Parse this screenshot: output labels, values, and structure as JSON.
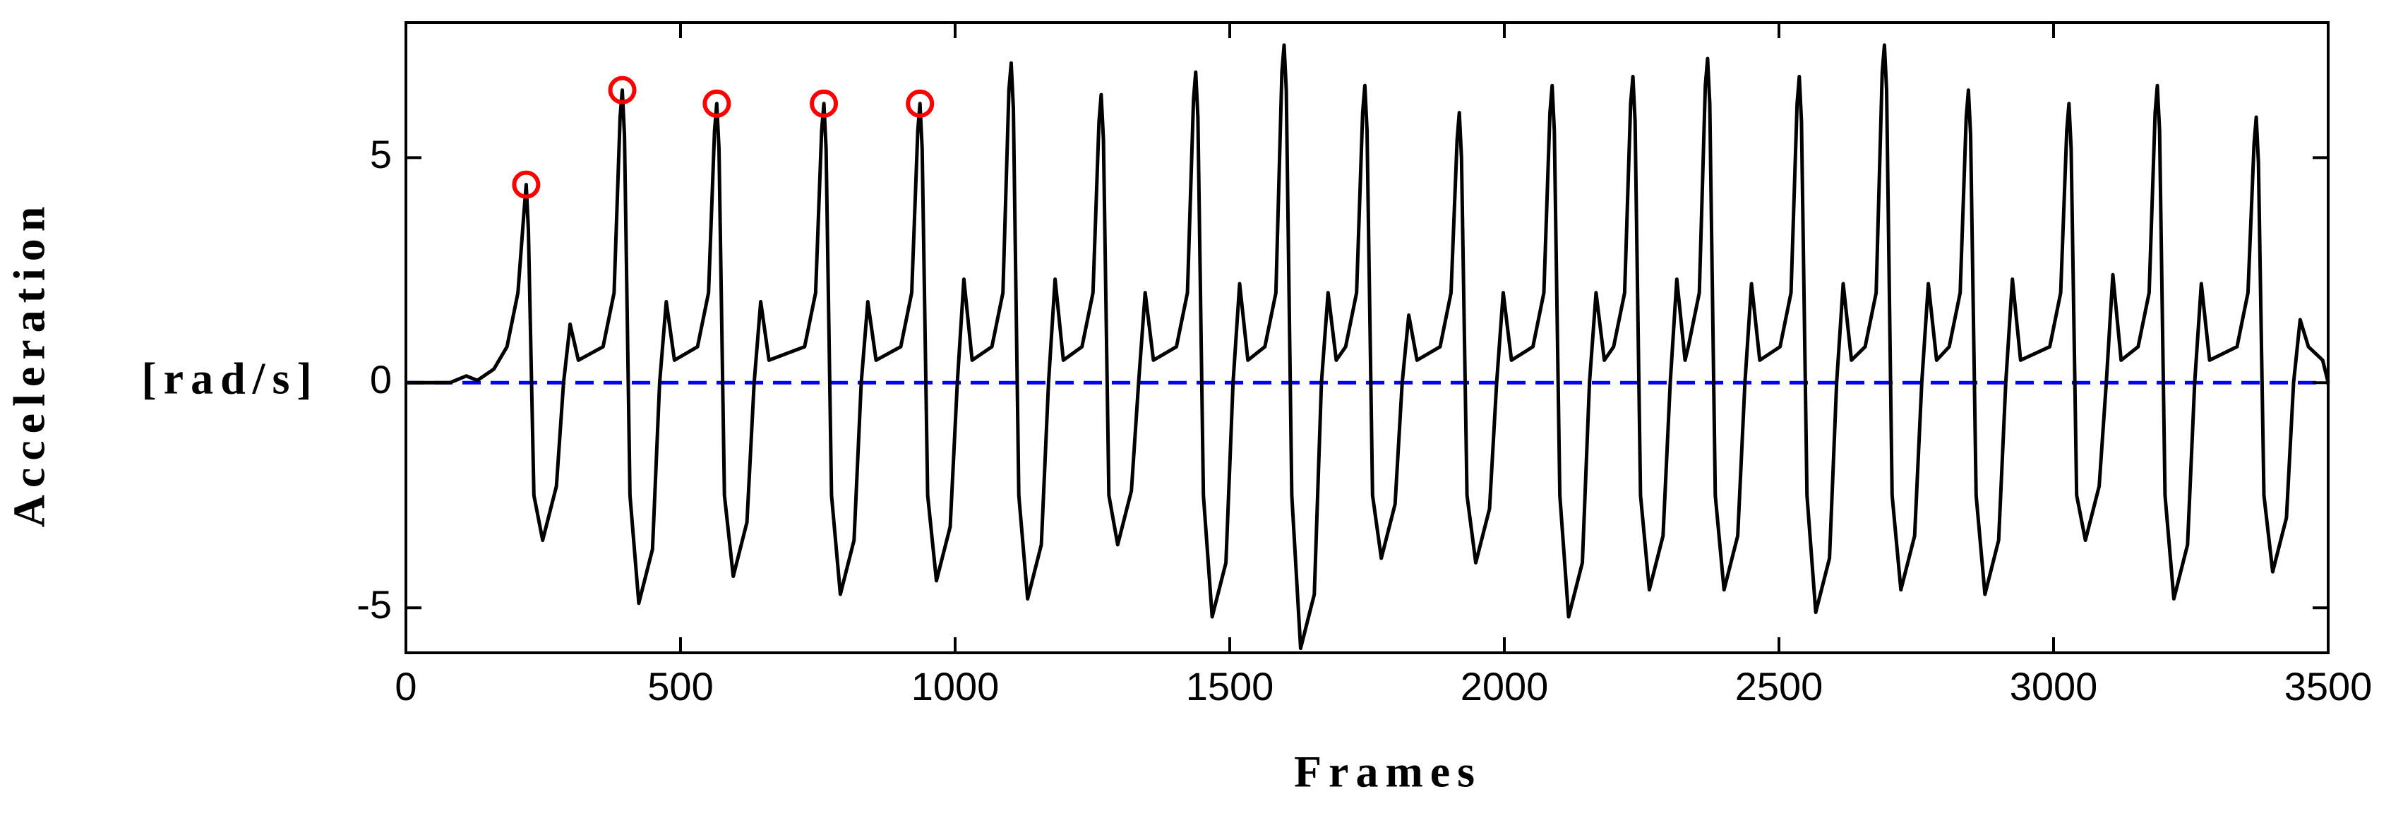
{
  "chart_data": {
    "type": "line",
    "xlabel": "Frames",
    "ylabel": "Acceleration",
    "ylabel_unit": "[rad/s]",
    "xlim": [
      0,
      3500
    ],
    "ylim": [
      -6,
      8
    ],
    "xticks": [
      0,
      500,
      1000,
      1500,
      2000,
      2500,
      3000,
      3500
    ],
    "yticks": [
      -5,
      0,
      5
    ],
    "grid": false,
    "hline": {
      "value": 0,
      "color": "#0000ff",
      "dashed": true
    },
    "series": [
      {
        "type": "line",
        "color": "#000000",
        "x": [
          0,
          80,
          110,
          130,
          160,
          184,
          204,
          215,
          219,
          223,
          233,
          249,
          274,
          287,
          299,
          314,
          359,
          379,
          390,
          394,
          398,
          408,
          424,
          449,
          462,
          474,
          489,
          531,
          551,
          562,
          566,
          570,
          580,
          596,
          621,
          634,
          646,
          661,
          726,
          746,
          757,
          761,
          765,
          775,
          791,
          816,
          829,
          841,
          856,
          901,
          921,
          932,
          936,
          940,
          950,
          966,
          991,
          1004,
          1016,
          1031,
          1067,
          1087,
          1098,
          1102,
          1106,
          1116,
          1132,
          1157,
          1170,
          1182,
          1197,
          1231,
          1251,
          1262,
          1266,
          1270,
          1280,
          1296,
          1321,
          1334,
          1346,
          1361,
          1403,
          1423,
          1434,
          1438,
          1442,
          1452,
          1468,
          1493,
          1506,
          1518,
          1533,
          1564,
          1584,
          1595,
          1599,
          1603,
          1613,
          1629,
          1654,
          1667,
          1679,
          1694,
          1711,
          1731,
          1742,
          1746,
          1750,
          1760,
          1776,
          1801,
          1814,
          1826,
          1841,
          1883,
          1903,
          1914,
          1918,
          1922,
          1932,
          1948,
          1973,
          1986,
          1998,
          2013,
          2052,
          2072,
          2083,
          2087,
          2091,
          2101,
          2117,
          2142,
          2155,
          2167,
          2182,
          2199,
          2219,
          2230,
          2234,
          2238,
          2248,
          2264,
          2289,
          2302,
          2314,
          2329,
          2335,
          2355,
          2366,
          2370,
          2374,
          2384,
          2400,
          2425,
          2438,
          2450,
          2465,
          2502,
          2522,
          2533,
          2537,
          2541,
          2551,
          2567,
          2592,
          2605,
          2617,
          2632,
          2657,
          2677,
          2688,
          2692,
          2696,
          2706,
          2722,
          2747,
          2760,
          2772,
          2787,
          2810,
          2830,
          2841,
          2845,
          2849,
          2859,
          2875,
          2900,
          2913,
          2925,
          2940,
          2993,
          3013,
          3024,
          3028,
          3032,
          3042,
          3058,
          3083,
          3096,
          3108,
          3123,
          3154,
          3174,
          3185,
          3189,
          3193,
          3203,
          3219,
          3244,
          3257,
          3269,
          3284,
          3334,
          3354,
          3365,
          3369,
          3373,
          3383,
          3399,
          3424,
          3437,
          3449,
          3464,
          3490,
          3500
        ],
        "values": [
          0,
          0,
          0.15,
          0.05,
          0.3,
          0.8,
          2,
          3.8,
          4.4,
          3.4,
          -2.5,
          -3.5,
          -2.3,
          0,
          1.3,
          0.5,
          0.8,
          2,
          5.9,
          6.5,
          5.5,
          -2.5,
          -4.9,
          -3.7,
          0,
          1.8,
          0.5,
          0.8,
          2,
          5.6,
          6.2,
          5.2,
          -2.5,
          -4.3,
          -3.1,
          0,
          1.8,
          0.5,
          0.8,
          2,
          5.6,
          6.2,
          5.2,
          -2.5,
          -4.7,
          -3.5,
          0,
          1.8,
          0.5,
          0.8,
          2,
          5.6,
          6.2,
          5.2,
          -2.5,
          -4.4,
          -3.2,
          0,
          2.3,
          0.5,
          0.8,
          2,
          6.5,
          7.1,
          6.1,
          -2.5,
          -4.8,
          -3.6,
          0,
          2.3,
          0.5,
          0.8,
          2,
          5.8,
          6.4,
          5.4,
          -2.5,
          -3.6,
          -2.4,
          0,
          2,
          0.5,
          0.8,
          2,
          6.3,
          6.9,
          5.9,
          -2.5,
          -5.2,
          -4,
          0,
          2.2,
          0.5,
          0.8,
          2,
          6.9,
          7.5,
          6.5,
          -2.5,
          -5.9,
          -4.7,
          0,
          2,
          0.5,
          0.8,
          2,
          6,
          6.6,
          5.6,
          -2.5,
          -3.9,
          -2.7,
          0,
          1.5,
          0.5,
          0.8,
          2,
          5.4,
          6,
          5,
          -2.5,
          -4,
          -2.8,
          0,
          2,
          0.5,
          0.8,
          2,
          6,
          6.6,
          5.6,
          -2.5,
          -5.2,
          -4,
          0,
          2,
          0.5,
          0.8,
          2,
          6.2,
          6.8,
          5.8,
          -2.5,
          -4.6,
          -3.4,
          0,
          2.3,
          0.5,
          0.8,
          2,
          6.6,
          7.2,
          6.2,
          -2.5,
          -4.6,
          -3.4,
          0,
          2.2,
          0.5,
          0.8,
          2,
          6.2,
          6.8,
          5.8,
          -2.5,
          -5.1,
          -3.9,
          0,
          2.2,
          0.5,
          0.8,
          2,
          6.9,
          7.5,
          6.5,
          -2.5,
          -4.6,
          -3.4,
          0,
          2.2,
          0.5,
          0.8,
          2,
          5.9,
          6.5,
          5.5,
          -2.5,
          -4.7,
          -3.5,
          0,
          2.3,
          0.5,
          0.8,
          2,
          5.6,
          6.2,
          5.2,
          -2.5,
          -3.5,
          -2.3,
          0,
          2.4,
          0.5,
          0.8,
          2,
          6,
          6.6,
          5.6,
          -2.5,
          -4.8,
          -3.6,
          0,
          2.2,
          0.5,
          0.8,
          2,
          5.3,
          5.9,
          4.9,
          -2.5,
          -4.2,
          -3,
          0,
          1.4,
          0.8,
          0.5,
          0
        ]
      },
      {
        "type": "scatter",
        "color": "#ff0000",
        "x": [
          219,
          394,
          566,
          761,
          936
        ],
        "values": [
          4.4,
          6.5,
          6.2,
          6.2,
          6.2
        ]
      }
    ]
  }
}
